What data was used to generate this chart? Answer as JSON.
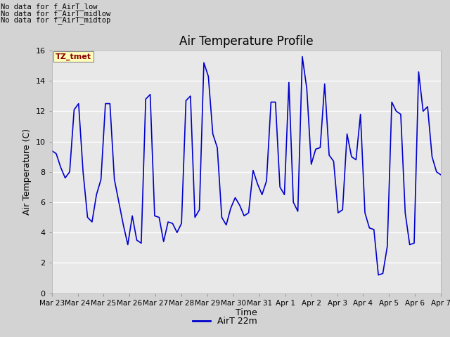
{
  "title": "Air Temperature Profile",
  "xlabel": "Time",
  "ylabel": "Air Temperature (C)",
  "legend_label": "AirT 22m",
  "no_data_texts": [
    "No data for f_AirT_low",
    "No data for f_AirT_midlow",
    "No data for f_AirT_midtop"
  ],
  "tz_label": "TZ_tmet",
  "ylim": [
    0,
    16
  ],
  "yticks": [
    0,
    2,
    4,
    6,
    8,
    10,
    12,
    14,
    16
  ],
  "line_color": "#0000cc",
  "fig_facecolor": "#d3d3d3",
  "axes_facecolor": "#e8e8e8",
  "x_dates": [
    "Mar 23",
    "Mar 24",
    "Mar 25",
    "Mar 26",
    "Mar 27",
    "Mar 28",
    "Mar 29",
    "Mar 30",
    "Mar 31",
    "Apr 1",
    "Apr 2",
    "Apr 3",
    "Apr 4",
    "Apr 5",
    "Apr 6",
    "Apr 7"
  ],
  "time_points": [
    0,
    1,
    2,
    3,
    4,
    5,
    6,
    7,
    8,
    9,
    10,
    11,
    12,
    13,
    14,
    15
  ],
  "y_values": [
    9.4,
    9.2,
    8.3,
    7.6,
    8.0,
    12.1,
    12.5,
    8.0,
    5.0,
    4.7,
    6.5,
    7.5,
    12.5,
    12.5,
    7.5,
    6.0,
    4.5,
    3.2,
    5.1,
    3.5,
    3.3,
    12.8,
    13.1,
    5.1,
    5.0,
    3.4,
    4.7,
    4.6,
    4.0,
    4.6,
    12.7,
    13.0,
    5.0,
    5.5,
    15.2,
    14.3,
    10.5,
    9.6,
    5.0,
    4.5,
    5.6,
    6.3,
    5.8,
    5.1,
    5.3,
    8.1,
    7.2,
    6.5,
    7.4,
    12.6,
    12.6,
    7.0,
    6.5,
    13.9,
    6.0,
    5.4,
    15.6,
    13.5,
    8.5,
    9.5,
    9.6,
    13.8,
    9.1,
    8.7,
    5.3,
    5.5,
    10.5,
    9.0,
    8.8,
    11.8,
    5.3,
    4.3,
    4.2,
    1.2,
    1.3,
    3.1,
    12.6,
    12.0,
    11.8,
    5.3,
    3.2,
    3.3,
    14.6,
    12.0,
    12.3,
    9.0,
    8.0,
    7.8
  ]
}
